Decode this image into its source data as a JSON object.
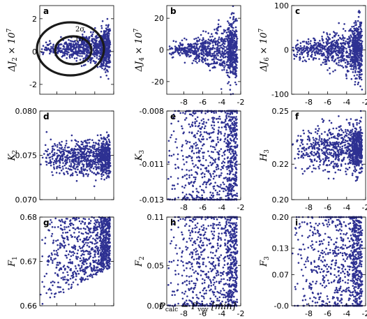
{
  "colors": {
    "points": "#2e3192",
    "contours": "#1a1a1a",
    "frame": "#000000"
  },
  "xlabel_parts": [
    "P",
    "calc",
    " − P",
    "voy",
    " [min]"
  ],
  "chart_data": [
    {
      "id": "a",
      "type": "scatter",
      "letter": "a",
      "ylabel": [
        "ΔJ",
        "2",
        " × 10",
        "7"
      ],
      "xlim": [
        -9.8,
        -2.0
      ],
      "ylim": [
        -2.6,
        2.8
      ],
      "yticks": [
        -2,
        0,
        2
      ],
      "ytick_labels": [
        "-2",
        "0",
        "2"
      ],
      "xticks": [],
      "xtick_labels": [],
      "shape": "fan",
      "center": 0.2,
      "spread": 1.9,
      "contours": [
        "2σ",
        "1σ"
      ]
    },
    {
      "id": "b",
      "type": "scatter",
      "letter": "b",
      "ylabel": [
        "ΔJ",
        "4",
        " × 10",
        "7"
      ],
      "xlim": [
        -9.8,
        -2.0
      ],
      "ylim": [
        -28,
        28
      ],
      "yticks": [
        -20,
        0,
        20
      ],
      "ytick_labels": [
        "-20",
        "0",
        "20"
      ],
      "xticks": [
        -8,
        -6,
        -4,
        -2
      ],
      "xtick_labels": [
        "-8",
        "-6",
        "-4",
        "-2"
      ],
      "shape": "fan",
      "center": 0,
      "spread": 27
    },
    {
      "id": "c",
      "type": "scatter",
      "letter": "c",
      "ylabel": [
        "ΔJ",
        "6",
        " × 10",
        "7"
      ],
      "xlim": [
        -9.8,
        -2.0
      ],
      "ylim": [
        -100,
        100
      ],
      "yticks": [
        -100,
        0,
        100
      ],
      "ytick_labels": [
        "-100",
        "0",
        "100"
      ],
      "xticks": [
        -8,
        -6,
        -4,
        -2
      ],
      "xtick_labels": [
        "-8",
        "-6",
        "-4",
        "-2"
      ],
      "shape": "fan",
      "center": 0,
      "spread": 95
    },
    {
      "id": "d",
      "type": "scatter",
      "letter": "d",
      "ylabel": [
        "K",
        "2",
        "",
        ""
      ],
      "xlim": [
        -9.8,
        -2.0
      ],
      "ylim": [
        0.07,
        0.08
      ],
      "yticks": [
        0.07,
        0.075,
        0.08
      ],
      "ytick_labels": [
        "0.070",
        "0.075",
        "0.080"
      ],
      "xticks": [],
      "xtick_labels": [],
      "shape": "band",
      "center": 0.0748,
      "spread": 0.0022
    },
    {
      "id": "e",
      "type": "scatter",
      "letter": "e",
      "ylabel": [
        "K",
        "3",
        "",
        ""
      ],
      "xlim": [
        -9.8,
        -2.0
      ],
      "ylim": [
        -0.013,
        -0.008
      ],
      "yticks": [
        -0.013,
        -0.011,
        -0.008
      ],
      "ytick_labels": [
        "-0.013",
        "-0.011",
        "-0.008"
      ],
      "xticks": [
        -8,
        -6,
        -4,
        -2
      ],
      "xtick_labels": [
        "-8",
        "-6",
        "-4",
        "-2"
      ],
      "shape": "uniform",
      "center": -0.0105,
      "spread": 0.0025
    },
    {
      "id": "f",
      "type": "scatter",
      "letter": "f",
      "ylabel": [
        "H",
        "3",
        "",
        ""
      ],
      "xlim": [
        -9.8,
        -2.0
      ],
      "ylim": [
        0.2,
        0.25
      ],
      "yticks": [
        0.2,
        0.22,
        0.25
      ],
      "ytick_labels": [
        "0.20",
        "0.22",
        "0.25"
      ],
      "xticks": [
        -8,
        -6,
        -4,
        -2
      ],
      "xtick_labels": [
        "-8",
        "-6",
        "-4",
        "-2"
      ],
      "shape": "band",
      "center": 0.229,
      "spread": 0.014
    },
    {
      "id": "g",
      "type": "scatter",
      "letter": "g",
      "ylabel": [
        "F",
        "1",
        "",
        ""
      ],
      "xlim": [
        -9.8,
        -2.0
      ],
      "ylim": [
        0.66,
        0.68
      ],
      "yticks": [
        0.66,
        0.67,
        0.68
      ],
      "ytick_labels": [
        "0.66",
        "0.67",
        "0.68"
      ],
      "xticks": [],
      "xtick_labels": [],
      "shape": "wedge",
      "center": 0.67,
      "spread": 0.01
    },
    {
      "id": "h",
      "type": "scatter",
      "letter": "h",
      "ylabel": [
        "F",
        "2",
        "",
        ""
      ],
      "xlim": [
        -9.8,
        -2.0
      ],
      "ylim": [
        0.0,
        0.11
      ],
      "yticks": [
        0.0,
        0.05,
        0.11
      ],
      "ytick_labels": [
        "0.00",
        "0.05",
        "0.11"
      ],
      "xticks": [
        -8,
        -6,
        -4,
        -2
      ],
      "xtick_labels": [
        "-8",
        "-6",
        "-4",
        "-2"
      ],
      "shape": "uniform",
      "center": 0.055,
      "spread": 0.055
    },
    {
      "id": "i",
      "type": "scatter",
      "letter": "i",
      "ylabel": [
        "F",
        "3",
        "",
        ""
      ],
      "xlim": [
        -9.8,
        -2.0
      ],
      "ylim": [
        0.0,
        0.2
      ],
      "yticks": [
        0.0,
        0.07,
        0.13,
        0.2
      ],
      "ytick_labels": [
        "-0.0",
        "0.07",
        "0.13",
        "0.20"
      ],
      "xticks": [
        -8,
        -6,
        -4,
        -2
      ],
      "xtick_labels": [
        "-8",
        "-6",
        "-4",
        "-2"
      ],
      "shape": "uniform",
      "center": 0.1,
      "spread": 0.1
    }
  ]
}
